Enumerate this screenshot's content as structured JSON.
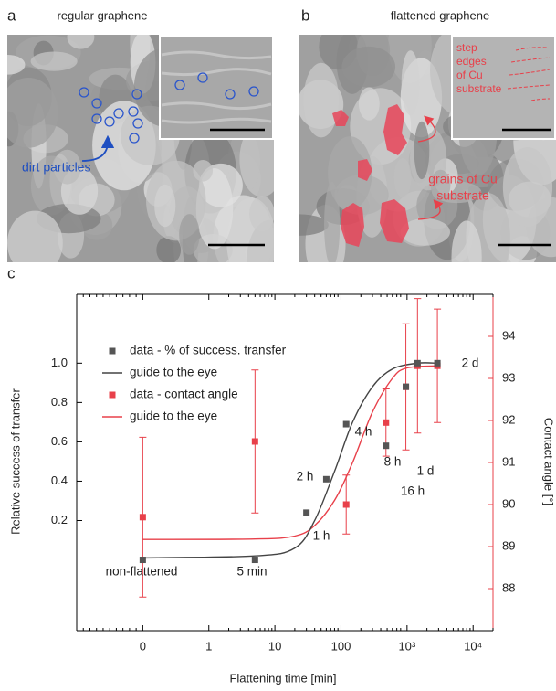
{
  "panels": [
    {
      "label": "a",
      "title": "regular graphene",
      "annotation": [
        "dirt particles"
      ]
    },
    {
      "label": "b",
      "title": "flattened graphene",
      "inset_annotation": [
        "step",
        "edges",
        "of Cu",
        "substrate"
      ],
      "annotation": [
        "grains of Cu",
        "substrate"
      ]
    }
  ],
  "chart_data": {
    "type": "scatter",
    "label": "c",
    "xlabel": "Flattening time [min]",
    "ylabel": "Relative success of transfer",
    "y2label": "Contact angle [°]",
    "log_x": true,
    "xlim": [
      0.01,
      20000
    ],
    "xticks": [
      {
        "value": 0,
        "label": "0"
      },
      1,
      10,
      100,
      {
        "value": 1000,
        "label": "10³"
      },
      {
        "value": 10000,
        "label": "10⁴"
      }
    ],
    "ylim": [
      -0.36,
      1.35
    ],
    "yticks": [
      0.2,
      0.4,
      0.6,
      0.8,
      {
        "value": 1.0,
        "label": "1.0"
      }
    ],
    "y2lim": [
      87,
      95
    ],
    "y2ticks": [
      88,
      89,
      90,
      91,
      92,
      93,
      94
    ],
    "y2color": "#e8404a",
    "legend": "upper left",
    "series": [
      {
        "name": "data - % of success. transfer",
        "type": "scatter",
        "color": "#555555",
        "x": [
          0,
          5,
          30,
          60,
          120,
          480,
          960,
          1440,
          2880
        ],
        "values": [
          0,
          0,
          0.24,
          0.41,
          0.69,
          0.58,
          0.88,
          1.0,
          1.0
        ]
      },
      {
        "name": "guide to the eye",
        "type": "line",
        "color": "#444444",
        "x": [
          0,
          5,
          20,
          40,
          80,
          150,
          300,
          600,
          1440,
          2880
        ],
        "values": [
          0.01,
          0.02,
          0.06,
          0.2,
          0.45,
          0.7,
          0.88,
          0.97,
          1.0,
          1.0
        ]
      },
      {
        "name": "data - contact angle",
        "type": "scatter",
        "color": "#e8404a",
        "axis": "y2",
        "x": [
          0,
          5,
          120,
          480,
          960,
          1440,
          2880
        ],
        "values": [
          89.7,
          91.5,
          90.0,
          91.95,
          92.8,
          93.3,
          93.3
        ],
        "errors": [
          1.9,
          1.7,
          0.7,
          0.8,
          1.5,
          1.6,
          1.35
        ]
      },
      {
        "name": "guide to the eye",
        "type": "line",
        "color": "#e8404a",
        "axis": "y2",
        "x": [
          0,
          5,
          20,
          40,
          80,
          150,
          300,
          600,
          1000,
          2880
        ],
        "values": [
          89.17,
          89.18,
          89.25,
          89.5,
          90.1,
          91.0,
          92.2,
          93.0,
          93.25,
          93.3
        ]
      }
    ],
    "annotations": [
      "non-flattened",
      "5 min",
      "1 h",
      "2 h",
      "4 h",
      "8 h",
      "16 h",
      "1 d",
      "2 d"
    ]
  }
}
